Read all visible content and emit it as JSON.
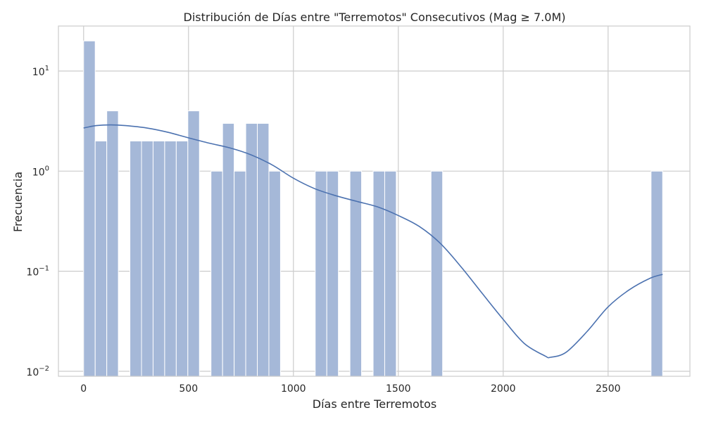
{
  "chart_data": {
    "type": "bar",
    "title": "Distribución de Días entre \"Terremotos\" Consecutivos (Mag ≥ 7.0M)",
    "xlabel": "Días entre Terremotos",
    "ylabel": "Frecuencia",
    "xlim": [
      -120,
      2890
    ],
    "ylim_log10": [
      -2.05,
      1.45
    ],
    "yscale": "log",
    "grid": true,
    "colors": {
      "bar": "#a5b8d8",
      "bar_edge": "#ffffff",
      "kde": "#4c72b0",
      "grid": "#cccccc",
      "spine": "#cccccc"
    },
    "x_ticks": [
      {
        "value": 0,
        "label": "0"
      },
      {
        "value": 500,
        "label": "500"
      },
      {
        "value": 1000,
        "label": "1000"
      },
      {
        "value": 1500,
        "label": "1500"
      },
      {
        "value": 2000,
        "label": "2000"
      },
      {
        "value": 2500,
        "label": "2500"
      }
    ],
    "y_ticks": [
      {
        "value": 0.01,
        "base": "10",
        "exp": "−2"
      },
      {
        "value": 0.1,
        "base": "10",
        "exp": "−1"
      },
      {
        "value": 1,
        "base": "10",
        "exp": "0"
      },
      {
        "value": 10,
        "base": "10",
        "exp": "1"
      }
    ],
    "bin_width": 55.2,
    "bins": [
      {
        "start": 0,
        "count": 20
      },
      {
        "start": 55.2,
        "count": 2
      },
      {
        "start": 110.4,
        "count": 4
      },
      {
        "start": 220.8,
        "count": 2
      },
      {
        "start": 276,
        "count": 2
      },
      {
        "start": 331.2,
        "count": 2
      },
      {
        "start": 386.4,
        "count": 2
      },
      {
        "start": 441.6,
        "count": 2
      },
      {
        "start": 496.8,
        "count": 4
      },
      {
        "start": 607.2,
        "count": 1
      },
      {
        "start": 662.4,
        "count": 3
      },
      {
        "start": 717.6,
        "count": 1
      },
      {
        "start": 772.8,
        "count": 3
      },
      {
        "start": 828,
        "count": 3
      },
      {
        "start": 883.2,
        "count": 1
      },
      {
        "start": 1104,
        "count": 1
      },
      {
        "start": 1159.2,
        "count": 1
      },
      {
        "start": 1269.6,
        "count": 1
      },
      {
        "start": 1380,
        "count": 1
      },
      {
        "start": 1435.2,
        "count": 1
      },
      {
        "start": 1656,
        "count": 1
      },
      {
        "start": 2704.8,
        "count": 1
      }
    ],
    "kde": {
      "name": "kde",
      "x": [
        0,
        60,
        130,
        200,
        300,
        400,
        500,
        600,
        700,
        800,
        900,
        1000,
        1100,
        1200,
        1300,
        1400,
        1500,
        1600,
        1700,
        1800,
        1900,
        2000,
        2100,
        2200,
        2225,
        2300,
        2400,
        2500,
        2600,
        2700,
        2760
      ],
      "y": [
        2.7,
        2.85,
        2.9,
        2.85,
        2.7,
        2.45,
        2.15,
        1.9,
        1.7,
        1.45,
        1.15,
        0.85,
        0.67,
        0.57,
        0.5,
        0.44,
        0.36,
        0.28,
        0.19,
        0.11,
        0.06,
        0.033,
        0.019,
        0.0142,
        0.0138,
        0.0155,
        0.025,
        0.044,
        0.065,
        0.085,
        0.093
      ]
    }
  }
}
